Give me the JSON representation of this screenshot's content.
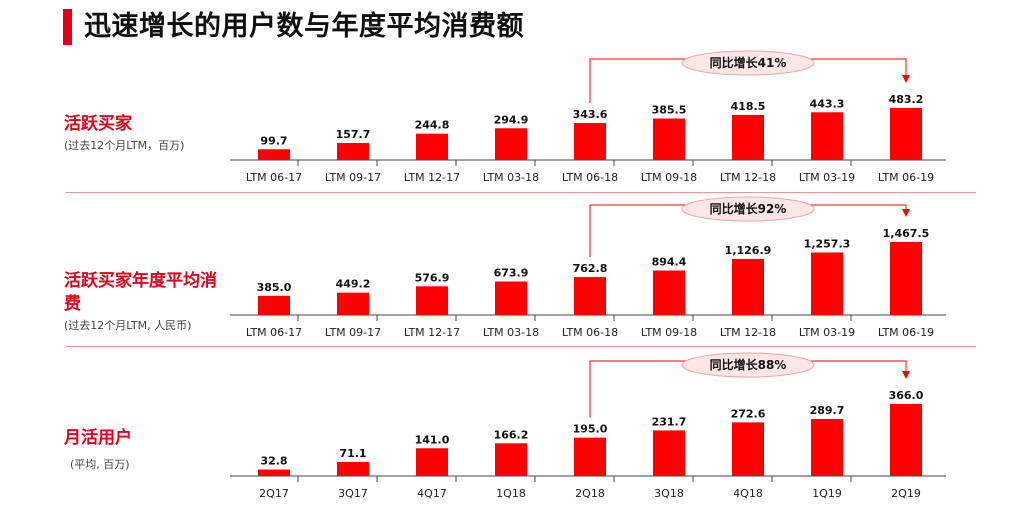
{
  "title": "迅速增长的用户数与年度平均消费额",
  "accent_color": "#e4001b",
  "bar_color": "#ff0000",
  "chart_data": [
    {
      "type": "bar",
      "label": "活跃买家",
      "sublabel": "(过去12个月LTM，百万)",
      "categories": [
        "LTM 06-17",
        "LTM 09-17",
        "LTM 12-17",
        "LTM 03-18",
        "LTM 06-18",
        "LTM 09-18",
        "LTM 12-18",
        "LTM 03-19",
        "LTM 06-19"
      ],
      "values": [
        99.7,
        157.7,
        244.8,
        294.9,
        343.6,
        385.5,
        418.5,
        443.3,
        483.2
      ],
      "value_labels": [
        "99.7",
        "157.7",
        "244.8",
        "294.9",
        "343.6",
        "385.5",
        "418.5",
        "443.3",
        "483.2"
      ],
      "annotation": "同比增长41%",
      "annotation_from": "LTM 06-18",
      "annotation_to": "LTM 06-19"
    },
    {
      "type": "bar",
      "label": "活跃买家年度平均消费",
      "sublabel": "(过去12个月LTM, 人民币)",
      "categories": [
        "LTM 06-17",
        "LTM 09-17",
        "LTM 12-17",
        "LTM 03-18",
        "LTM 06-18",
        "LTM 09-18",
        "LTM 12-18",
        "LTM 03-19",
        "LTM 06-19"
      ],
      "values": [
        385.0,
        449.2,
        576.9,
        673.9,
        762.8,
        894.4,
        1126.9,
        1257.3,
        1467.5
      ],
      "value_labels": [
        "385.0",
        "449.2",
        "576.9",
        "673.9",
        "762.8",
        "894.4",
        "1,126.9",
        "1,257.3",
        "1,467.5"
      ],
      "annotation": "同比增长92%",
      "annotation_from": "LTM 06-18",
      "annotation_to": "LTM 06-19"
    },
    {
      "type": "bar",
      "label": "月活用户",
      "sublabel": "(平均, 百万)",
      "categories": [
        "2Q17",
        "3Q17",
        "4Q17",
        "1Q18",
        "2Q18",
        "3Q18",
        "4Q18",
        "1Q19",
        "2Q19"
      ],
      "values": [
        32.8,
        71.1,
        141.0,
        166.2,
        195.0,
        231.7,
        272.6,
        289.7,
        366.0
      ],
      "value_labels": [
        "32.8",
        "71.1",
        "141.0",
        "166.2",
        "195.0",
        "231.7",
        "272.6",
        "289.7",
        "366.0"
      ],
      "annotation": "同比增长88%",
      "annotation_from": "2Q18",
      "annotation_to": "2Q19"
    }
  ]
}
